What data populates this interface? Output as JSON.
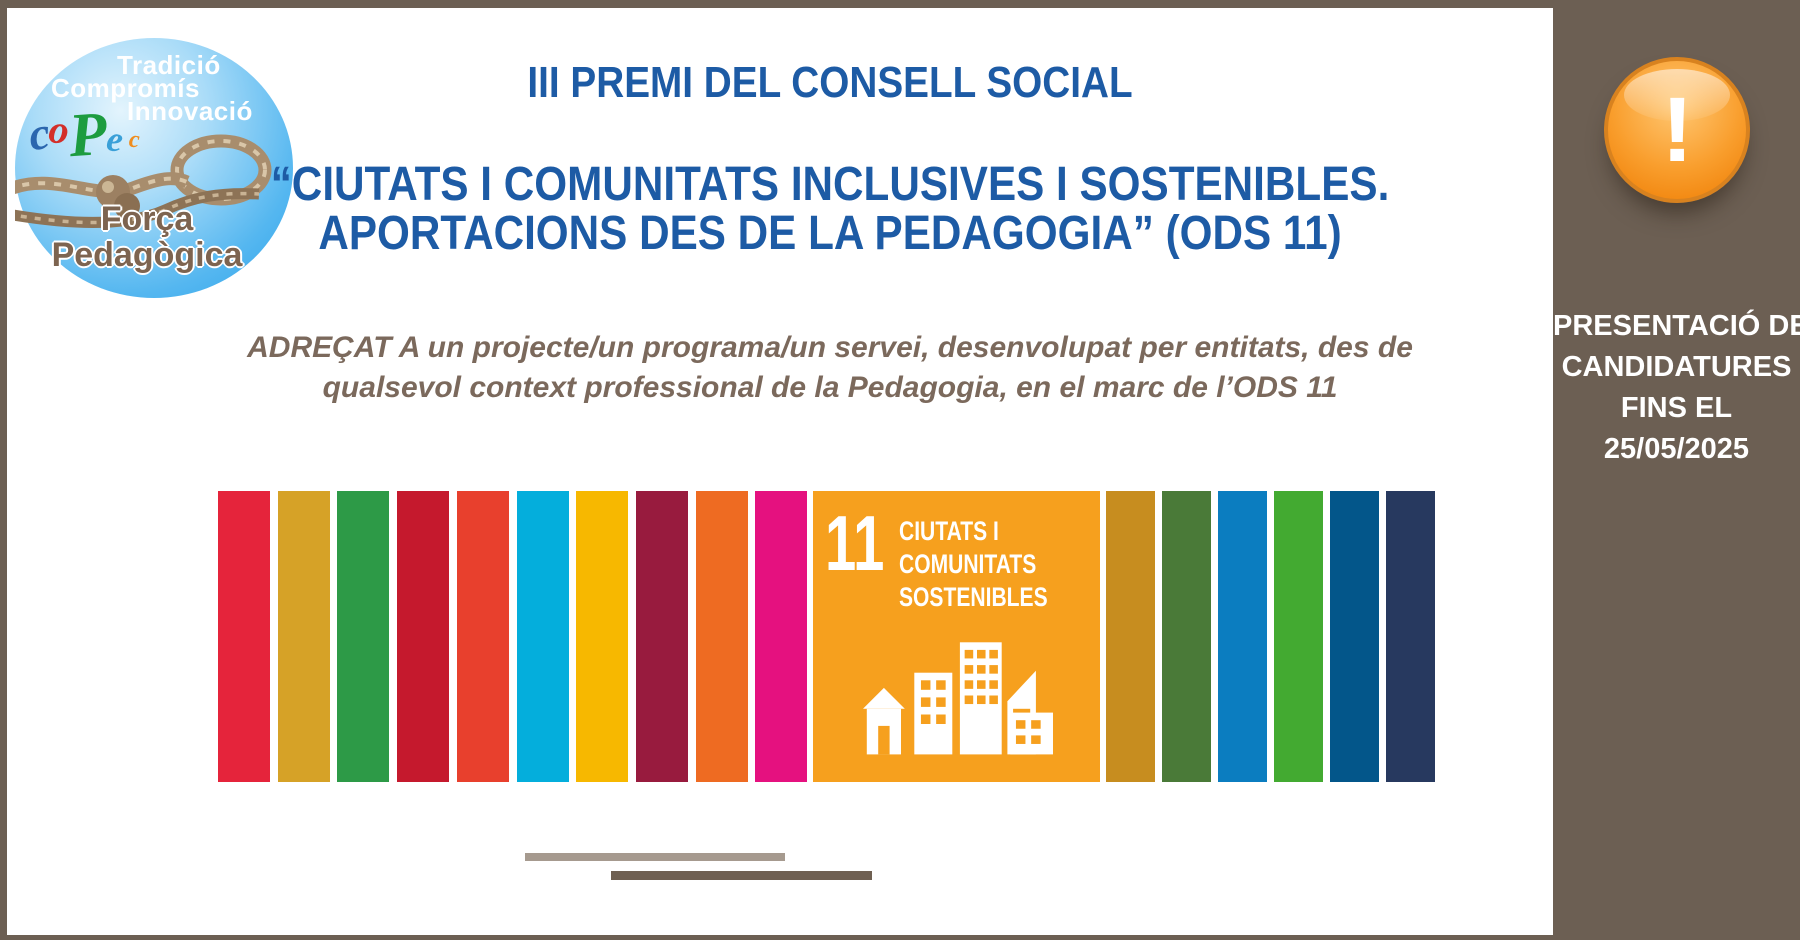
{
  "frame": {
    "brown": "#6c5f53"
  },
  "logo": {
    "words": [
      "Tradició",
      "Compromís",
      "Innovació"
    ],
    "acronym": [
      "c",
      "o",
      "P",
      "e",
      "c"
    ],
    "tagline_line1": "Força",
    "tagline_line2": "Pedagògica"
  },
  "header": {
    "title": "III PREMI DEL CONSELL SOCIAL",
    "subtitle_line1": "“CIUTATS I COMUNITATS INCLUSIVES I SOSTENIBLES.",
    "subtitle_line2": "APORTACIONS DES DE LA PEDAGOGIA” (ODS 11)",
    "title_color": "#1d5ba5"
  },
  "description": {
    "line1": "ADREÇAT A un projecte/un programa/un servei, desenvolupat per entitats, des de",
    "line2": "qualsevol context professional de la Pedagogia, en el marc de l’ODS 11"
  },
  "sdg_strip": {
    "bars_left": [
      "#e5243b",
      "#d6a227",
      "#2d9a47",
      "#c5192d",
      "#e8402d",
      "#04aedc",
      "#f7b800",
      "#981b3e",
      "#ee6b22",
      "#e5117f"
    ],
    "tile": {
      "number": "11",
      "label_lines": [
        "CIUTATS I",
        "COMUNITATS",
        "SOSTENIBLES"
      ],
      "color": "#f6a01e"
    },
    "bars_right": [
      "#c78d1f",
      "#4a7a38",
      "#0b7dc0",
      "#43aa31",
      "#03568a",
      "#27395f"
    ]
  },
  "sidebar": {
    "bg": "#6c5f53",
    "alert_glyph": "!",
    "lines": [
      "PRESENTACIÓ DE",
      "CANDIDATURES",
      "FINS EL",
      "25/05/2025"
    ]
  }
}
